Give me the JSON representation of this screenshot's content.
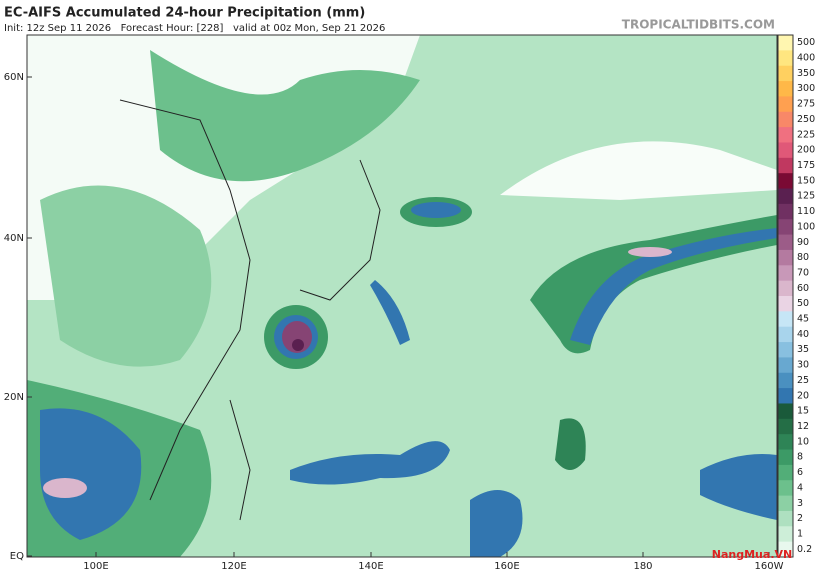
{
  "header": {
    "title": "EC-AIFS Accumulated 24-hour Precipitation (mm)",
    "subtitle": "Init: 12z Sep 11 2026   Forecast Hour: [228]   valid at 00z Mon, Sep 21 2026",
    "brand": "TROPICALTIDBITS.COM"
  },
  "lat_labels": [
    "60N",
    "40N",
    "20N",
    "EQ"
  ],
  "lon_labels": [
    "100E",
    "120E",
    "140E",
    "160E",
    "180",
    "160W"
  ],
  "colorbar": [
    {
      "level": 500,
      "color": "#fff6b0"
    },
    {
      "level": 400,
      "color": "#ffe680"
    },
    {
      "level": 350,
      "color": "#ffd060"
    },
    {
      "level": 300,
      "color": "#ffb848"
    },
    {
      "level": 275,
      "color": "#ffa050"
    },
    {
      "level": 250,
      "color": "#f88868"
    },
    {
      "level": 225,
      "color": "#f07080"
    },
    {
      "level": 200,
      "color": "#e05878"
    },
    {
      "level": 175,
      "color": "#c03860"
    },
    {
      "level": 150,
      "color": "#7a0a34"
    },
    {
      "level": 125,
      "color": "#5a2050"
    },
    {
      "level": 110,
      "color": "#703062"
    },
    {
      "level": 100,
      "color": "#864474"
    },
    {
      "level": 90,
      "color": "#9c5c88"
    },
    {
      "level": 80,
      "color": "#b47aa0"
    },
    {
      "level": 70,
      "color": "#c898b8"
    },
    {
      "level": 60,
      "color": "#dab6cc"
    },
    {
      "level": 50,
      "color": "#ead4e4"
    },
    {
      "level": 45,
      "color": "#c6e6f6"
    },
    {
      "level": 40,
      "color": "#a8d4ec"
    },
    {
      "level": 35,
      "color": "#88c0e0"
    },
    {
      "level": 30,
      "color": "#68a8d0"
    },
    {
      "level": 25,
      "color": "#4a90c0"
    },
    {
      "level": 20,
      "color": "#3276b0"
    },
    {
      "level": 15,
      "color": "#1a5a3a"
    },
    {
      "level": 12,
      "color": "#246e46"
    },
    {
      "level": 10,
      "color": "#2e8456"
    },
    {
      "level": 8,
      "color": "#3c9a66"
    },
    {
      "level": 6,
      "color": "#52ae78"
    },
    {
      "level": 4,
      "color": "#6cc08c"
    },
    {
      "level": 3,
      "color": "#8cd0a4"
    },
    {
      "level": 2,
      "color": "#aee0c0"
    },
    {
      "level": 1,
      "color": "#cdeed8"
    },
    {
      "level": 0.2,
      "color": "#e8f8ee"
    }
  ],
  "watermark": "NangMua.VN"
}
